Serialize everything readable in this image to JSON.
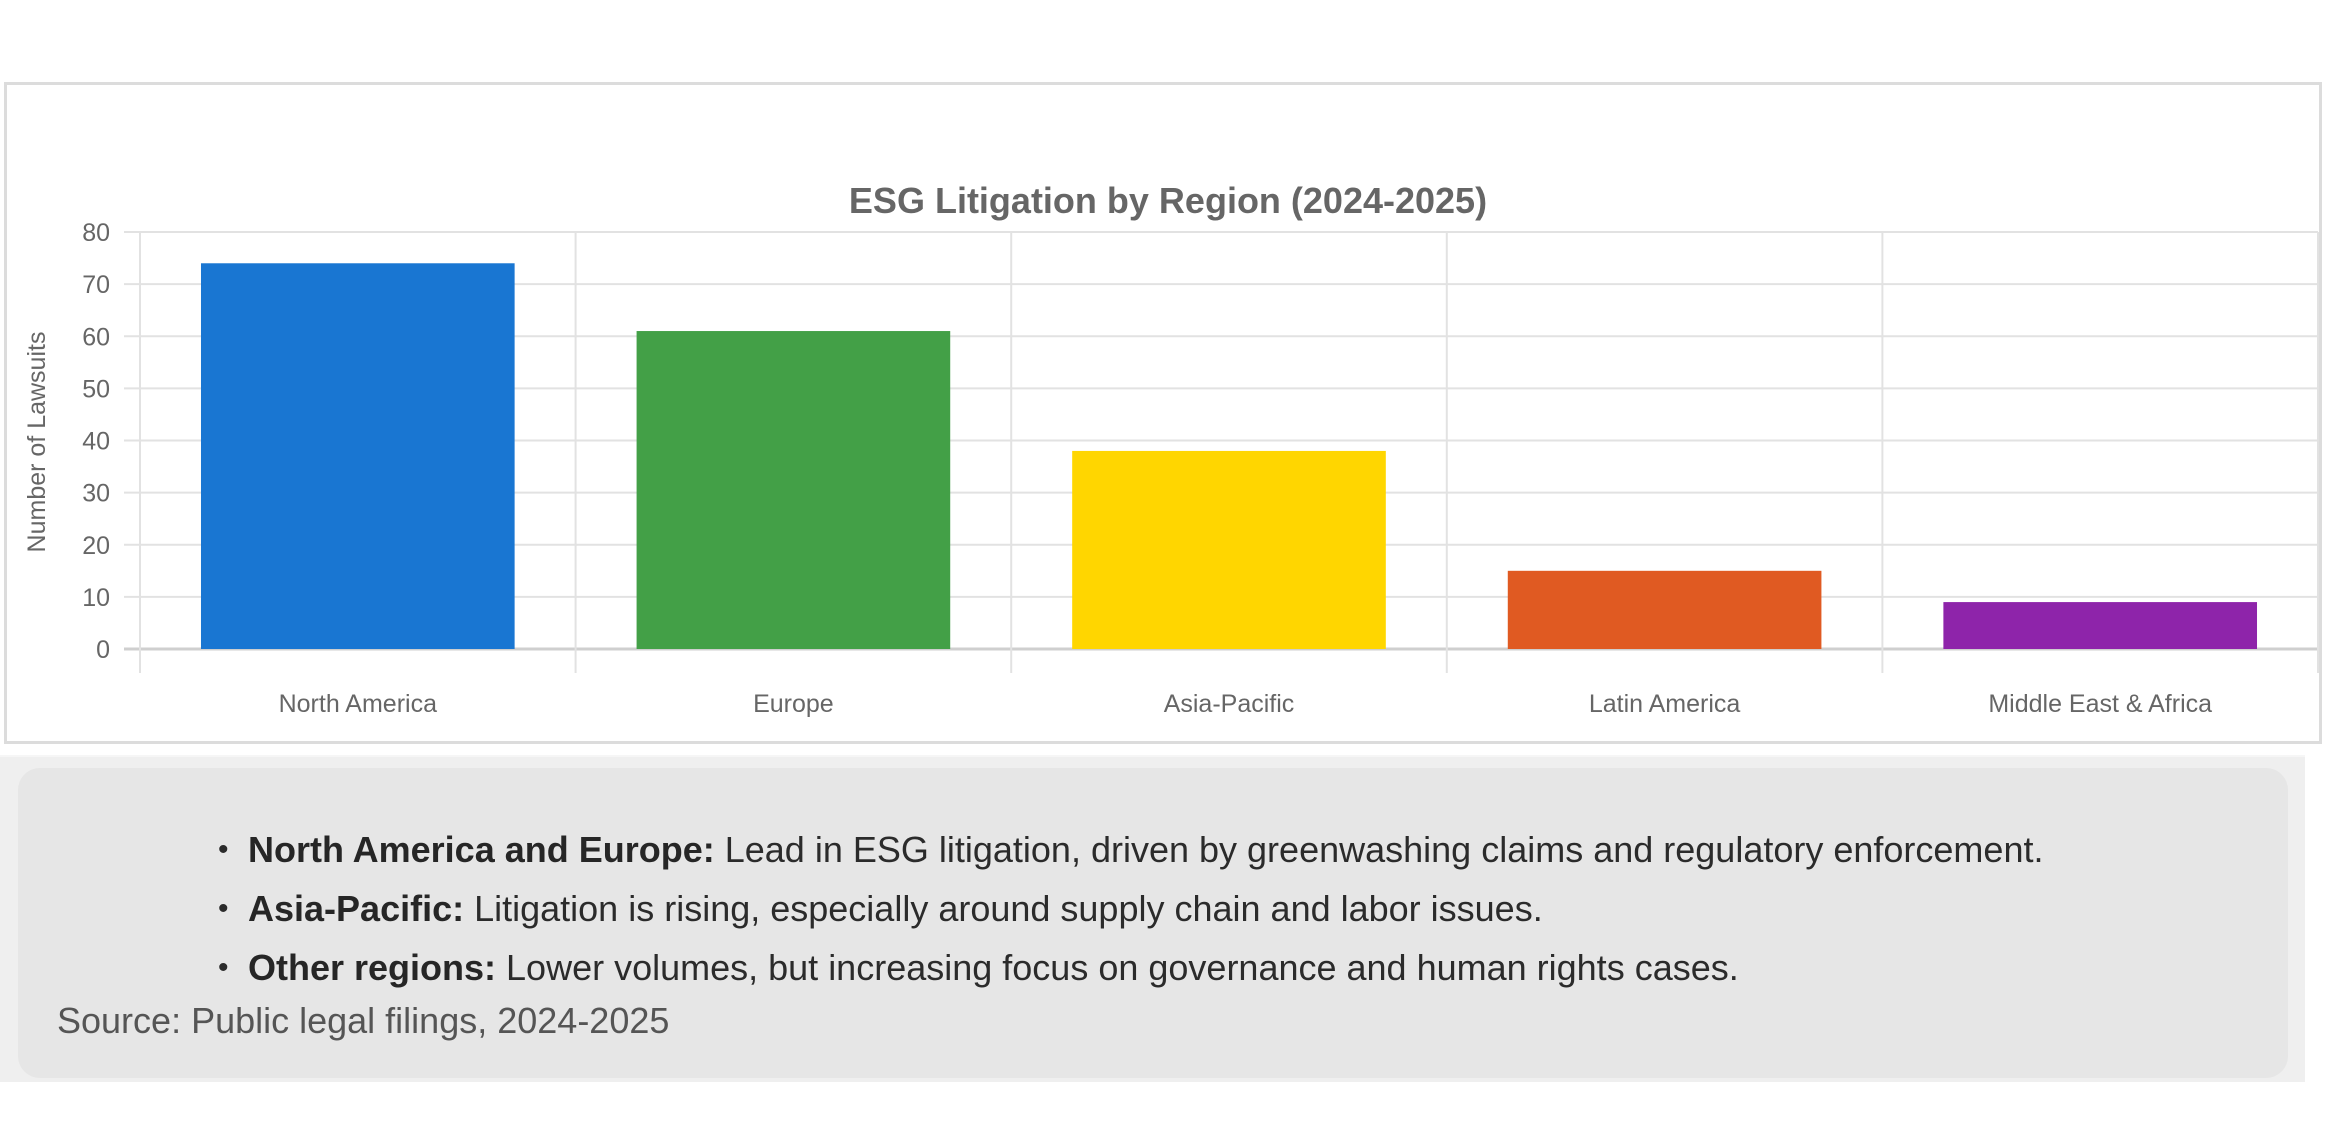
{
  "chart_data": {
    "type": "bar",
    "title": "ESG Litigation by Region (2024-2025)",
    "xlabel": "",
    "ylabel": "Number of Lawsuits",
    "categories": [
      "North America",
      "Europe",
      "Asia-Pacific",
      "Latin America",
      "Middle East & Africa"
    ],
    "values": [
      74,
      61,
      38,
      15,
      9
    ],
    "colors": [
      "#1976D2",
      "#43A047",
      "#FFD600",
      "#E05A22",
      "#8E24AA"
    ],
    "ylim": [
      0,
      80
    ],
    "yticks": [
      0,
      10,
      20,
      30,
      40,
      50,
      60,
      70,
      80
    ],
    "grid": true,
    "legend": "none"
  },
  "notes": {
    "items": [
      {
        "label": "North America and Europe:",
        "text": " Lead in ESG litigation, driven by greenwashing claims and regulatory enforcement."
      },
      {
        "label": "Asia-Pacific:",
        "text": " Litigation is rising, especially around supply chain and labor issues."
      },
      {
        "label": "Other regions:",
        "text": " Lower volumes, but increasing focus on governance and human rights cases."
      }
    ],
    "source": "Source: Public legal filings, 2024-2025"
  }
}
